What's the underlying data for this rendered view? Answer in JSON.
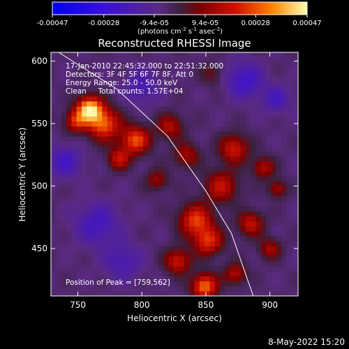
{
  "chart_data": {
    "type": "heatmap",
    "title": "Reconstructed RHESSI Image",
    "xlabel": "Heliocentric X (arcsec)",
    "ylabel": "Heliocentric Y (arcsec)",
    "xlim": [
      729,
      922
    ],
    "ylim": [
      412,
      607
    ],
    "xticks": [
      750,
      800,
      850,
      900
    ],
    "yticks": [
      450,
      500,
      550,
      600
    ],
    "colorbar": {
      "ticks": [
        "-0.00047",
        "-0.00028",
        "-9.4e-05",
        "9.4e-05",
        "0.00028",
        "0.00047"
      ],
      "tick_values": [
        -0.00047,
        -0.00028,
        -9.4e-05,
        9.4e-05,
        0.00028,
        0.00047
      ],
      "range": [
        -0.00047,
        0.00047
      ],
      "unit_label": "(photons cm",
      "unit_exp1": "-2",
      "unit_mid": " s",
      "unit_exp2": "-1",
      "unit_mid2": " asec",
      "unit_exp3": "-2",
      "unit_end": ")"
    },
    "annotations": [
      "17-Jan-2010 22:45:32.000 to 22:51:32.000",
      "Detectors: 3F 4F 5F 6F 7F 8F, Att 0",
      "Energy Range: 25.0 - 50.0 keV",
      "Clean     Total counts: 1.57E+04"
    ],
    "peak_label": "Position of Peak = [759,562]",
    "peak": [
      759,
      562
    ],
    "limb_curve": [
      [
        735,
        607
      ],
      [
        780,
        578
      ],
      [
        820,
        540
      ],
      [
        850,
        496
      ],
      [
        870,
        462
      ],
      [
        887,
        412
      ]
    ],
    "emission_blobs": [
      {
        "x": 759,
        "y": 562,
        "amp": 1.0,
        "r": 7
      },
      {
        "x": 770,
        "y": 550,
        "amp": 0.75,
        "r": 9
      },
      {
        "x": 748,
        "y": 552,
        "amp": 0.55,
        "r": 6
      },
      {
        "x": 795,
        "y": 537,
        "amp": 0.7,
        "r": 8
      },
      {
        "x": 782,
        "y": 522,
        "amp": 0.5,
        "r": 6
      },
      {
        "x": 822,
        "y": 548,
        "amp": 0.45,
        "r": 7
      },
      {
        "x": 835,
        "y": 525,
        "amp": 0.4,
        "r": 7
      },
      {
        "x": 872,
        "y": 530,
        "amp": 0.55,
        "r": 8
      },
      {
        "x": 862,
        "y": 500,
        "amp": 0.5,
        "r": 9
      },
      {
        "x": 895,
        "y": 515,
        "amp": 0.45,
        "r": 6
      },
      {
        "x": 906,
        "y": 498,
        "amp": 0.4,
        "r": 5
      },
      {
        "x": 842,
        "y": 473,
        "amp": 0.65,
        "r": 9
      },
      {
        "x": 852,
        "y": 456,
        "amp": 0.6,
        "r": 8
      },
      {
        "x": 828,
        "y": 440,
        "amp": 0.55,
        "r": 7
      },
      {
        "x": 849,
        "y": 420,
        "amp": 0.8,
        "r": 7
      },
      {
        "x": 873,
        "y": 430,
        "amp": 0.45,
        "r": 6
      },
      {
        "x": 885,
        "y": 470,
        "amp": 0.5,
        "r": 7
      },
      {
        "x": 900,
        "y": 450,
        "amp": 0.4,
        "r": 6
      },
      {
        "x": 812,
        "y": 505,
        "amp": 0.35,
        "r": 6
      },
      {
        "x": 740,
        "y": 520,
        "amp": -0.35,
        "r": 9
      },
      {
        "x": 765,
        "y": 470,
        "amp": -0.35,
        "r": 12
      },
      {
        "x": 785,
        "y": 440,
        "amp": -0.3,
        "r": 10
      },
      {
        "x": 800,
        "y": 580,
        "amp": -0.3,
        "r": 9
      },
      {
        "x": 880,
        "y": 585,
        "amp": -0.4,
        "r": 10
      },
      {
        "x": 905,
        "y": 570,
        "amp": -0.3,
        "r": 8
      },
      {
        "x": 855,
        "y": 590,
        "amp": 0.25,
        "r": 6
      }
    ]
  },
  "timestamp": "8-May-2022 15:20"
}
